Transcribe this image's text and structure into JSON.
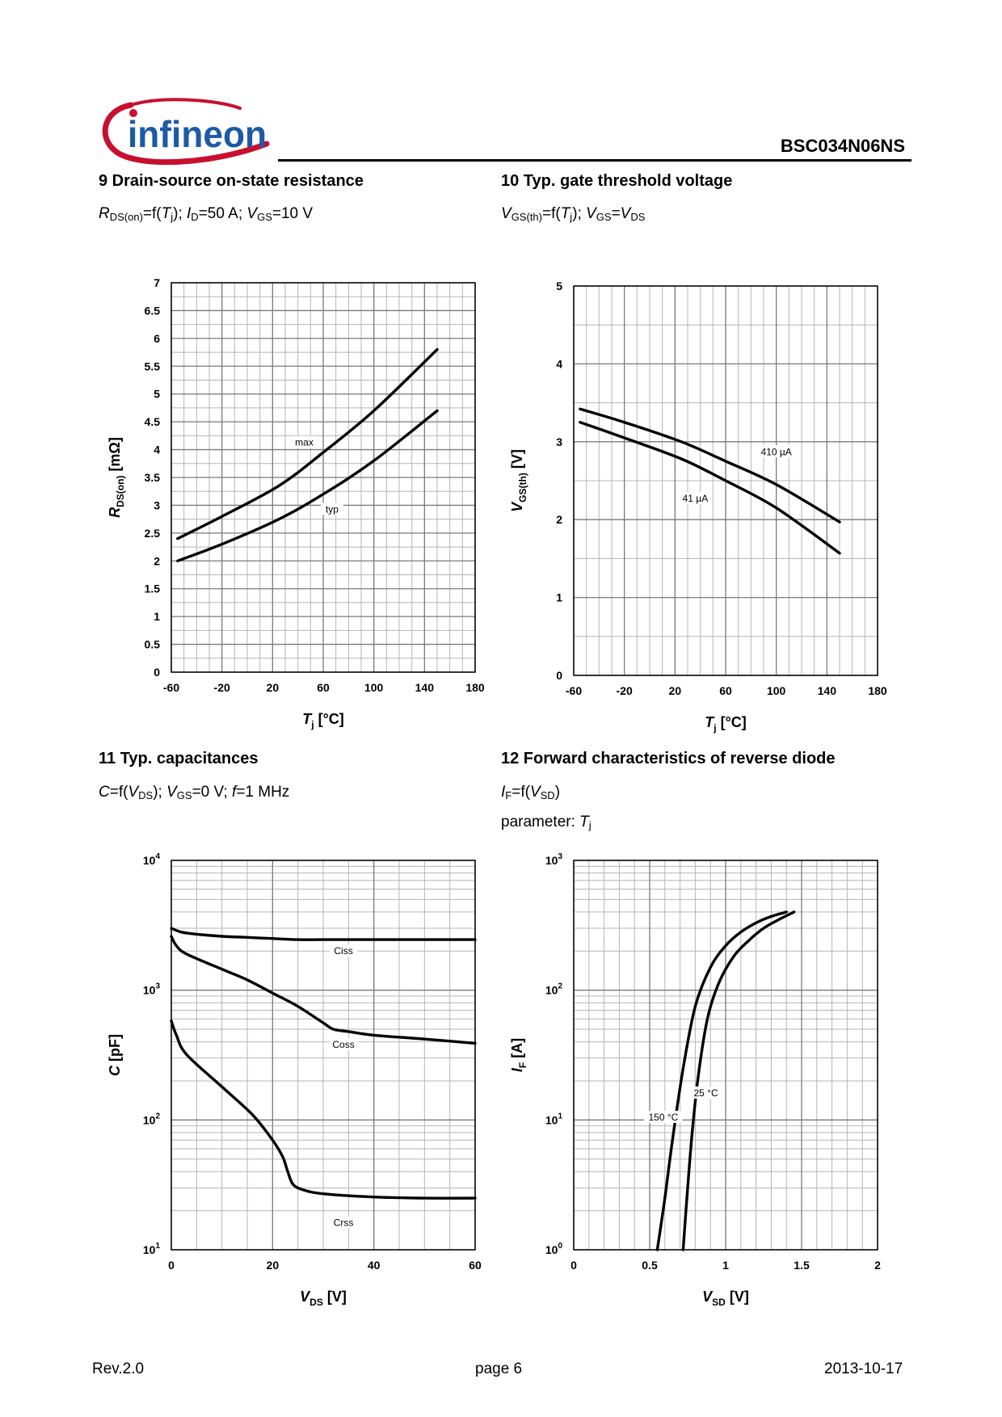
{
  "header": {
    "logo_text": "infineon",
    "part_number": "BSC034N06NS"
  },
  "footer": {
    "revision": "Rev.2.0",
    "page": "page 6",
    "date": "2013-10-17"
  },
  "sections": {
    "s9": {
      "title": "9 Drain-source on-state resistance",
      "formula": {
        "v1": "R",
        "s1": "DS(on)",
        "t1": "=f(",
        "v2": "T",
        "s2": "j",
        "t2": "); ",
        "v3": "I",
        "s3": "D",
        "t3": "=50 A; ",
        "v4": "V",
        "s4": "GS",
        "t4": "=10 V"
      }
    },
    "s10": {
      "title": "10 Typ. gate threshold voltage",
      "formula": {
        "v1": "V",
        "s1": "GS(th)",
        "t1": "=f(",
        "v2": "T",
        "s2": "j",
        "t2": "); ",
        "v3": "V",
        "s3": "GS",
        "t3": "=",
        "v4": "V",
        "s4": "DS"
      }
    },
    "s11": {
      "title": "11 Typ. capacitances",
      "formula": {
        "v1": "C",
        "t1": "=f(",
        "v2": "V",
        "s2": "DS",
        "t2": "); ",
        "v3": "V",
        "s3": "GS",
        "t3": "=0 V; ",
        "v4": "f",
        "t4": "=1 MHz"
      }
    },
    "s12": {
      "title": "12 Forward characteristics of reverse diode",
      "formula": {
        "v1": "I",
        "s1": "F",
        "t1": "=f(",
        "v2": "V",
        "s2": "SD",
        "t2": ")"
      },
      "param_label": "parameter: ",
      "param_var": "T",
      "param_sub": "j"
    }
  },
  "chart_data": [
    {
      "type": "line",
      "xlim": [
        -60,
        180
      ],
      "ylim": [
        0,
        7
      ],
      "xticks": [
        -60,
        -20,
        20,
        60,
        100,
        140,
        180
      ],
      "yticks": [
        0,
        0.5,
        1,
        1.5,
        2,
        2.5,
        3,
        3.5,
        4,
        4.5,
        5,
        5.5,
        6,
        6.5,
        7
      ],
      "grid": true,
      "xlabel": {
        "var": "T",
        "sub": "j",
        "unit": " [°C]"
      },
      "ylabel": {
        "var": "R",
        "sub": "DS(on)",
        "unit": " [mΩ]"
      },
      "series": [
        {
          "name": "max",
          "x": [
            -55,
            -20,
            25,
            60,
            100,
            150
          ],
          "y": [
            2.4,
            2.8,
            3.35,
            3.95,
            4.7,
            5.8
          ],
          "label_at": [
            45,
            4.1
          ]
        },
        {
          "name": "typ",
          "x": [
            -55,
            -20,
            25,
            60,
            100,
            150
          ],
          "y": [
            2.0,
            2.3,
            2.75,
            3.2,
            3.8,
            4.7
          ],
          "label_at": [
            67,
            2.9
          ]
        }
      ]
    },
    {
      "type": "line",
      "xlim": [
        -60,
        180
      ],
      "ylim": [
        0,
        5
      ],
      "xticks": [
        -60,
        -20,
        20,
        60,
        100,
        140,
        180
      ],
      "yticks": [
        0,
        1,
        2,
        3,
        4,
        5
      ],
      "grid": true,
      "xlabel": {
        "var": "T",
        "sub": "j",
        "unit": " [°C]"
      },
      "ylabel": {
        "var": "V",
        "sub": "GS(th)",
        "unit": " [V]"
      },
      "series": [
        {
          "name": "410 µA",
          "x": [
            -55,
            -20,
            25,
            60,
            100,
            150
          ],
          "y": [
            3.42,
            3.25,
            3.0,
            2.75,
            2.45,
            1.97
          ],
          "label_at": [
            100,
            2.85
          ]
        },
        {
          "name": "41 µA",
          "x": [
            -55,
            -20,
            25,
            60,
            100,
            150
          ],
          "y": [
            3.25,
            3.05,
            2.78,
            2.5,
            2.15,
            1.57
          ],
          "label_at": [
            36,
            2.25
          ]
        }
      ]
    },
    {
      "type": "line",
      "xlim": [
        0,
        60
      ],
      "ylim": [
        10,
        10000
      ],
      "yscale": "log",
      "xticks": [
        0,
        20,
        40,
        60
      ],
      "yticks": [
        10,
        100,
        1000,
        10000
      ],
      "ytick_labels": [
        {
          "base": "10",
          "exp": "1"
        },
        {
          "base": "10",
          "exp": "2"
        },
        {
          "base": "10",
          "exp": "3"
        },
        {
          "base": "10",
          "exp": "4"
        }
      ],
      "grid": true,
      "xlabel": {
        "var": "V",
        "sub": "DS",
        "unit": " [V]"
      },
      "ylabel": {
        "var": "C",
        "sub": "",
        "unit": " [pF]"
      },
      "series": [
        {
          "name": "Ciss",
          "x": [
            0,
            2,
            5,
            10,
            15,
            20,
            25,
            30,
            40,
            50,
            60
          ],
          "y": [
            3000,
            2800,
            2700,
            2600,
            2550,
            2500,
            2450,
            2450,
            2450,
            2450,
            2450
          ],
          "label_at": [
            34,
            1950
          ]
        },
        {
          "name": "Coss",
          "x": [
            0,
            1,
            3,
            10,
            15,
            20,
            25,
            30,
            32,
            35,
            40,
            50,
            60
          ],
          "y": [
            2600,
            2200,
            1900,
            1450,
            1200,
            950,
            750,
            560,
            500,
            480,
            450,
            420,
            390
          ],
          "label_at": [
            34,
            370
          ]
        },
        {
          "name": "Crss",
          "x": [
            0,
            1,
            3,
            10,
            16,
            20,
            22,
            23,
            24,
            26,
            30,
            40,
            50,
            60
          ],
          "y": [
            580,
            450,
            320,
            180,
            110,
            70,
            52,
            40,
            32,
            29,
            27,
            25.5,
            25,
            25
          ],
          "label_at": [
            34,
            15.7
          ]
        }
      ]
    },
    {
      "type": "line",
      "xlim": [
        0,
        2
      ],
      "ylim": [
        1,
        1000
      ],
      "yscale": "log",
      "xticks": [
        0,
        0.5,
        1,
        1.5,
        2
      ],
      "yticks": [
        1,
        10,
        100,
        1000
      ],
      "ytick_labels": [
        {
          "base": "10",
          "exp": "0"
        },
        {
          "base": "10",
          "exp": "1"
        },
        {
          "base": "10",
          "exp": "2"
        },
        {
          "base": "10",
          "exp": "3"
        }
      ],
      "grid": true,
      "xlabel": {
        "var": "V",
        "sub": "SD",
        "unit": " [V]"
      },
      "ylabel": {
        "var": "I",
        "sub": "F",
        "unit": " [A]"
      },
      "series": [
        {
          "name": "150 °C",
          "x": [
            0.55,
            0.6,
            0.65,
            0.72,
            0.8,
            0.9,
            1.0,
            1.1,
            1.2,
            1.3,
            1.4
          ],
          "y": [
            1,
            2.5,
            7,
            25,
            75,
            150,
            220,
            280,
            330,
            370,
            400
          ],
          "label_at": [
            0.59,
            10.2
          ]
        },
        {
          "name": "25 °C",
          "x": [
            0.72,
            0.75,
            0.78,
            0.82,
            0.88,
            0.95,
            1.05,
            1.15,
            1.25,
            1.35,
            1.45
          ],
          "y": [
            1,
            3,
            8,
            22,
            60,
            110,
            180,
            240,
            300,
            350,
            400
          ],
          "label_at": [
            0.87,
            15.7
          ]
        }
      ]
    }
  ]
}
